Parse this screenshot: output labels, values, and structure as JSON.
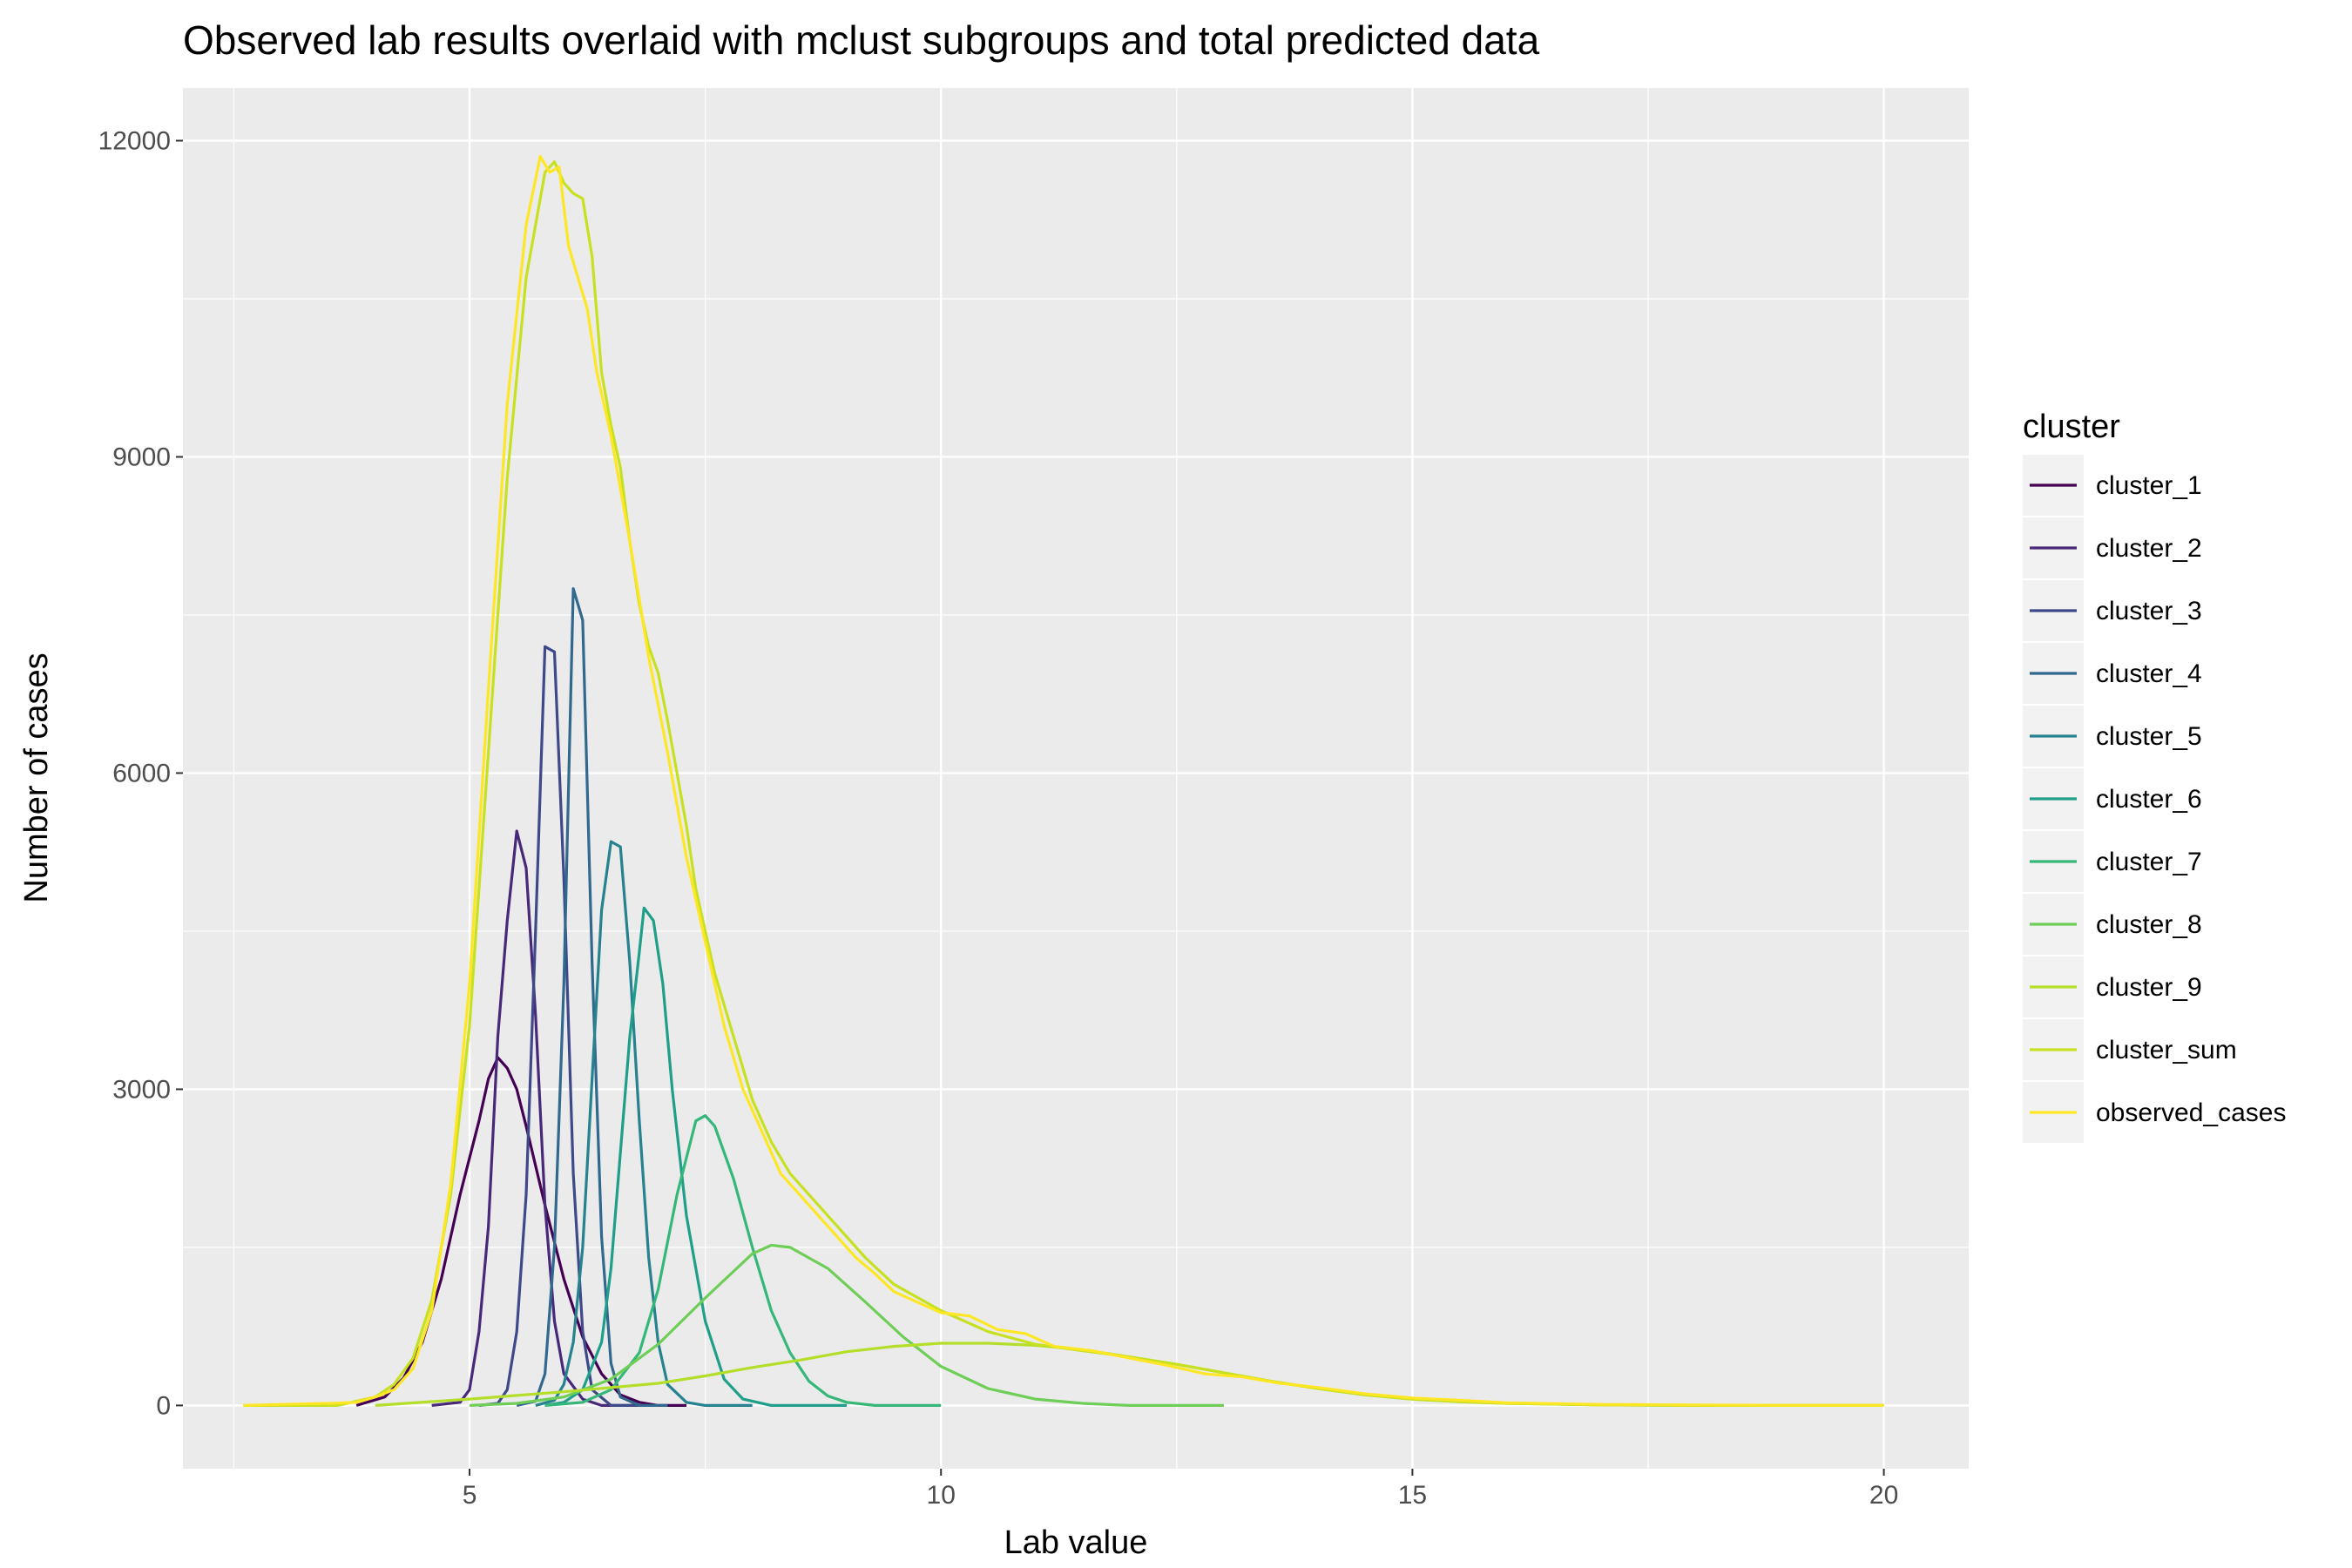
{
  "chart_data": {
    "type": "line",
    "title": "Observed lab results overlaid with mclust subgroups and total predicted data",
    "xlabel": "Lab value",
    "ylabel": "Number of cases",
    "xlim": [
      1.96,
      20.9
    ],
    "ylim": [
      -600,
      12500
    ],
    "x_ticks": [
      5,
      10,
      15,
      20
    ],
    "y_ticks": [
      0,
      3000,
      6000,
      9000,
      12000
    ],
    "x_tick_labels": [
      "5",
      "10",
      "15",
      "20"
    ],
    "y_tick_labels": [
      "0",
      "3000",
      "6000",
      "9000",
      "12000"
    ],
    "grid": true,
    "legend_title": "cluster",
    "legend_position": "right",
    "series": [
      {
        "name": "cluster_1",
        "color": "#440154",
        "points": [
          [
            3.8,
            0
          ],
          [
            4.1,
            80
          ],
          [
            4.3,
            260
          ],
          [
            4.5,
            600
          ],
          [
            4.7,
            1200
          ],
          [
            4.9,
            2000
          ],
          [
            5.1,
            2700
          ],
          [
            5.2,
            3100
          ],
          [
            5.3,
            3300
          ],
          [
            5.4,
            3200
          ],
          [
            5.5,
            3000
          ],
          [
            5.6,
            2650
          ],
          [
            5.8,
            1900
          ],
          [
            6.0,
            1200
          ],
          [
            6.2,
            650
          ],
          [
            6.4,
            300
          ],
          [
            6.6,
            100
          ],
          [
            6.8,
            30
          ],
          [
            7.0,
            0
          ],
          [
            7.3,
            0
          ]
        ]
      },
      {
        "name": "cluster_2",
        "color": "#482878",
        "points": [
          [
            4.6,
            0
          ],
          [
            4.9,
            30
          ],
          [
            5.0,
            150
          ],
          [
            5.1,
            700
          ],
          [
            5.2,
            1700
          ],
          [
            5.3,
            3500
          ],
          [
            5.4,
            4600
          ],
          [
            5.5,
            5450
          ],
          [
            5.6,
            5100
          ],
          [
            5.7,
            3700
          ],
          [
            5.8,
            1900
          ],
          [
            5.9,
            800
          ],
          [
            6.0,
            300
          ],
          [
            6.2,
            60
          ],
          [
            6.4,
            0
          ],
          [
            6.8,
            0
          ]
        ]
      },
      {
        "name": "cluster_3",
        "color": "#3e4989",
        "points": [
          [
            5.1,
            0
          ],
          [
            5.3,
            20
          ],
          [
            5.4,
            150
          ],
          [
            5.5,
            700
          ],
          [
            5.6,
            2000
          ],
          [
            5.7,
            4500
          ],
          [
            5.8,
            7200
          ],
          [
            5.9,
            7150
          ],
          [
            6.0,
            5000
          ],
          [
            6.1,
            2200
          ],
          [
            6.2,
            700
          ],
          [
            6.3,
            150
          ],
          [
            6.5,
            0
          ],
          [
            6.8,
            0
          ]
        ]
      },
      {
        "name": "cluster_4",
        "color": "#31688e",
        "points": [
          [
            5.5,
            0
          ],
          [
            5.7,
            40
          ],
          [
            5.8,
            300
          ],
          [
            5.9,
            1500
          ],
          [
            6.0,
            4000
          ],
          [
            6.1,
            7750
          ],
          [
            6.2,
            7450
          ],
          [
            6.3,
            4200
          ],
          [
            6.4,
            1600
          ],
          [
            6.5,
            400
          ],
          [
            6.6,
            80
          ],
          [
            6.8,
            0
          ],
          [
            7.1,
            0
          ]
        ]
      },
      {
        "name": "cluster_5",
        "color": "#26828e",
        "points": [
          [
            5.7,
            0
          ],
          [
            5.9,
            50
          ],
          [
            6.0,
            200
          ],
          [
            6.1,
            600
          ],
          [
            6.2,
            1500
          ],
          [
            6.3,
            3100
          ],
          [
            6.4,
            4700
          ],
          [
            6.5,
            5350
          ],
          [
            6.6,
            5300
          ],
          [
            6.7,
            4200
          ],
          [
            6.8,
            2700
          ],
          [
            6.9,
            1400
          ],
          [
            7.0,
            600
          ],
          [
            7.1,
            200
          ],
          [
            7.3,
            30
          ],
          [
            7.5,
            0
          ],
          [
            8.0,
            0
          ]
        ]
      },
      {
        "name": "cluster_6",
        "color": "#1f9e89",
        "points": [
          [
            5.8,
            0
          ],
          [
            6.0,
            30
          ],
          [
            6.2,
            150
          ],
          [
            6.4,
            600
          ],
          [
            6.5,
            1300
          ],
          [
            6.6,
            2400
          ],
          [
            6.7,
            3500
          ],
          [
            6.8,
            4300
          ],
          [
            6.85,
            4720
          ],
          [
            6.95,
            4600
          ],
          [
            7.05,
            4000
          ],
          [
            7.15,
            3000
          ],
          [
            7.3,
            1800
          ],
          [
            7.5,
            800
          ],
          [
            7.7,
            250
          ],
          [
            7.9,
            60
          ],
          [
            8.2,
            0
          ],
          [
            9.0,
            0
          ]
        ]
      },
      {
        "name": "cluster_7",
        "color": "#35b779",
        "points": [
          [
            5.8,
            0
          ],
          [
            6.2,
            30
          ],
          [
            6.5,
            150
          ],
          [
            6.8,
            500
          ],
          [
            7.0,
            1100
          ],
          [
            7.2,
            2000
          ],
          [
            7.4,
            2700
          ],
          [
            7.5,
            2750
          ],
          [
            7.6,
            2650
          ],
          [
            7.8,
            2150
          ],
          [
            8.0,
            1500
          ],
          [
            8.2,
            900
          ],
          [
            8.4,
            500
          ],
          [
            8.6,
            230
          ],
          [
            8.8,
            90
          ],
          [
            9.0,
            30
          ],
          [
            9.3,
            0
          ],
          [
            10.0,
            0
          ]
        ]
      },
      {
        "name": "cluster_8",
        "color": "#6ece58",
        "points": [
          [
            5.0,
            0
          ],
          [
            5.5,
            20
          ],
          [
            6.0,
            80
          ],
          [
            6.5,
            250
          ],
          [
            7.0,
            580
          ],
          [
            7.5,
            1020
          ],
          [
            8.0,
            1440
          ],
          [
            8.2,
            1520
          ],
          [
            8.4,
            1500
          ],
          [
            8.8,
            1300
          ],
          [
            9.2,
            980
          ],
          [
            9.6,
            650
          ],
          [
            10.0,
            370
          ],
          [
            10.5,
            160
          ],
          [
            11.0,
            60
          ],
          [
            11.5,
            20
          ],
          [
            12.0,
            0
          ],
          [
            13.0,
            0
          ]
        ]
      },
      {
        "name": "cluster_9",
        "color": "#b5de2b",
        "points": [
          [
            4.0,
            0
          ],
          [
            5.0,
            60
          ],
          [
            6.0,
            130
          ],
          [
            7.0,
            210
          ],
          [
            7.5,
            280
          ],
          [
            8.0,
            360
          ],
          [
            8.5,
            430
          ],
          [
            9.0,
            510
          ],
          [
            9.5,
            560
          ],
          [
            10.0,
            590
          ],
          [
            10.5,
            590
          ],
          [
            11.0,
            570
          ],
          [
            11.5,
            530
          ],
          [
            12.0,
            460
          ],
          [
            12.5,
            390
          ],
          [
            13.0,
            310
          ],
          [
            13.5,
            230
          ],
          [
            14.0,
            160
          ],
          [
            14.5,
            100
          ],
          [
            15.0,
            60
          ],
          [
            15.5,
            35
          ],
          [
            16.0,
            20
          ],
          [
            17.0,
            5
          ],
          [
            18.0,
            0
          ],
          [
            20.0,
            0
          ]
        ]
      },
      {
        "name": "cluster_sum",
        "color": "#c7e020",
        "points": [
          [
            2.6,
            0
          ],
          [
            3.6,
            0
          ],
          [
            4.0,
            80
          ],
          [
            4.2,
            200
          ],
          [
            4.4,
            450
          ],
          [
            4.6,
            1000
          ],
          [
            4.8,
            2000
          ],
          [
            5.0,
            3600
          ],
          [
            5.2,
            6200
          ],
          [
            5.4,
            8800
          ],
          [
            5.6,
            10700
          ],
          [
            5.8,
            11700
          ],
          [
            5.9,
            11800
          ],
          [
            6.0,
            11600
          ],
          [
            6.1,
            11500
          ],
          [
            6.2,
            11450
          ],
          [
            6.3,
            10900
          ],
          [
            6.4,
            9800
          ],
          [
            6.5,
            9300
          ],
          [
            6.6,
            8900
          ],
          [
            6.7,
            8200
          ],
          [
            6.8,
            7600
          ],
          [
            6.9,
            7200
          ],
          [
            7.0,
            6950
          ],
          [
            7.1,
            6500
          ],
          [
            7.2,
            6000
          ],
          [
            7.3,
            5500
          ],
          [
            7.4,
            4900
          ],
          [
            7.5,
            4500
          ],
          [
            7.6,
            4100
          ],
          [
            7.8,
            3500
          ],
          [
            8.0,
            2900
          ],
          [
            8.2,
            2500
          ],
          [
            8.4,
            2200
          ],
          [
            8.6,
            2000
          ],
          [
            8.8,
            1800
          ],
          [
            9.0,
            1600
          ],
          [
            9.2,
            1400
          ],
          [
            9.5,
            1150
          ],
          [
            10.0,
            900
          ],
          [
            10.5,
            700
          ],
          [
            11.0,
            580
          ],
          [
            11.5,
            520
          ],
          [
            12.0,
            460
          ],
          [
            12.5,
            390
          ],
          [
            13.0,
            310
          ],
          [
            13.5,
            230
          ],
          [
            14.0,
            160
          ],
          [
            14.5,
            100
          ],
          [
            15.0,
            60
          ],
          [
            15.5,
            35
          ],
          [
            16.0,
            20
          ],
          [
            17.0,
            5
          ],
          [
            18.0,
            0
          ],
          [
            20.0,
            0
          ]
        ]
      },
      {
        "name": "observed_cases",
        "color": "#fde725",
        "points": [
          [
            2.6,
            0
          ],
          [
            3.0,
            10
          ],
          [
            3.5,
            20
          ],
          [
            3.8,
            30
          ],
          [
            4.0,
            80
          ],
          [
            4.2,
            150
          ],
          [
            4.4,
            350
          ],
          [
            4.6,
            900
          ],
          [
            4.8,
            2100
          ],
          [
            5.0,
            4000
          ],
          [
            5.2,
            6800
          ],
          [
            5.4,
            9500
          ],
          [
            5.6,
            11200
          ],
          [
            5.75,
            11850
          ],
          [
            5.85,
            11700
          ],
          [
            5.95,
            11750
          ],
          [
            6.05,
            11000
          ],
          [
            6.15,
            10700
          ],
          [
            6.25,
            10400
          ],
          [
            6.35,
            9800
          ],
          [
            6.5,
            9200
          ],
          [
            6.7,
            8200
          ],
          [
            6.9,
            7100
          ],
          [
            7.1,
            6200
          ],
          [
            7.3,
            5200
          ],
          [
            7.5,
            4400
          ],
          [
            7.7,
            3600
          ],
          [
            7.9,
            3000
          ],
          [
            8.1,
            2600
          ],
          [
            8.3,
            2200
          ],
          [
            8.5,
            2000
          ],
          [
            8.7,
            1800
          ],
          [
            8.9,
            1600
          ],
          [
            9.1,
            1400
          ],
          [
            9.3,
            1250
          ],
          [
            9.5,
            1080
          ],
          [
            9.7,
            1000
          ],
          [
            10.0,
            880
          ],
          [
            10.3,
            850
          ],
          [
            10.6,
            720
          ],
          [
            10.9,
            680
          ],
          [
            11.2,
            560
          ],
          [
            11.6,
            520
          ],
          [
            12.0,
            450
          ],
          [
            12.4,
            380
          ],
          [
            12.8,
            300
          ],
          [
            13.2,
            270
          ],
          [
            13.6,
            210
          ],
          [
            14.0,
            170
          ],
          [
            14.5,
            110
          ],
          [
            15.0,
            70
          ],
          [
            15.5,
            50
          ],
          [
            16.0,
            25
          ],
          [
            17.0,
            10
          ],
          [
            18.0,
            5
          ],
          [
            19.0,
            0
          ],
          [
            20.0,
            0
          ]
        ]
      }
    ]
  }
}
